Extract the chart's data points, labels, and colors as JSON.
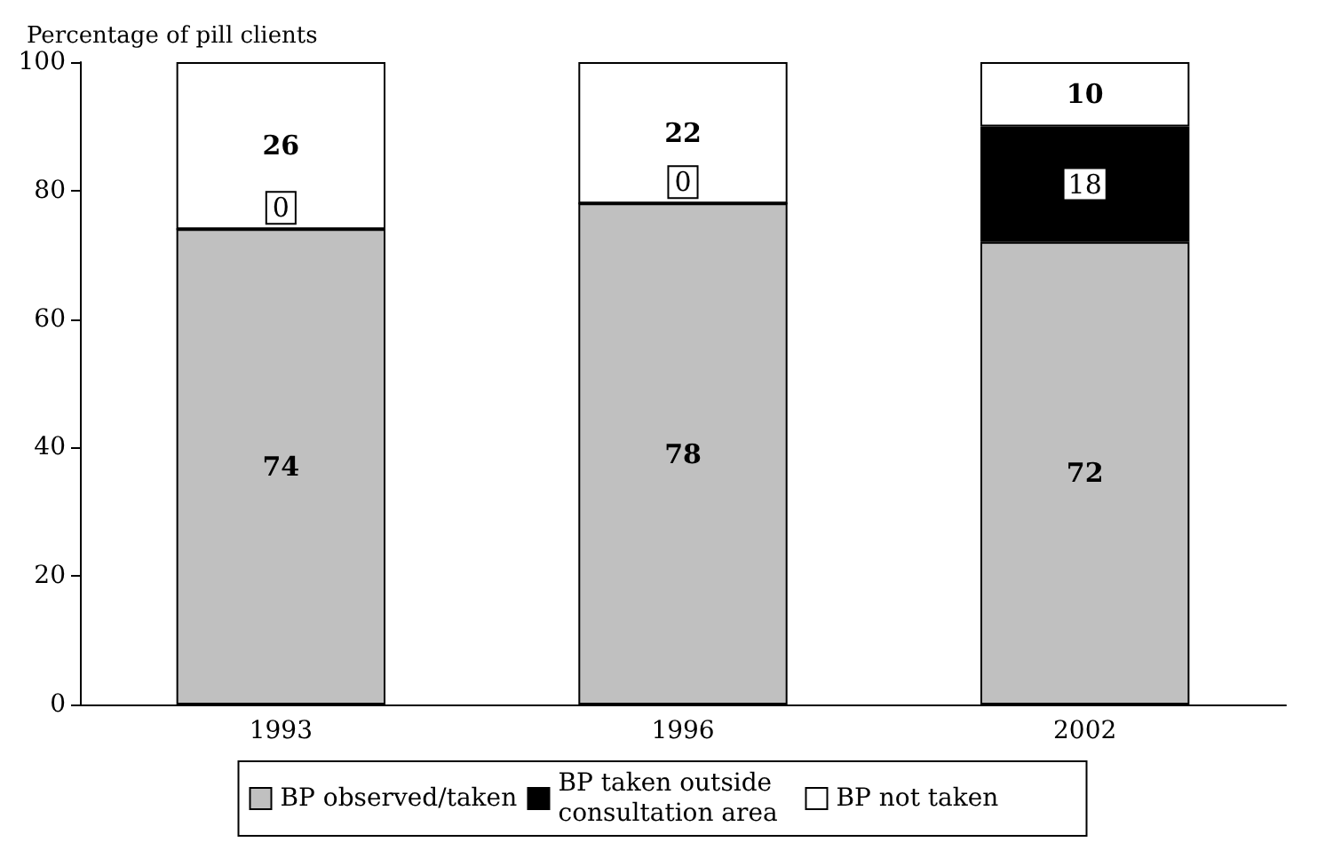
{
  "chart_data": {
    "type": "bar",
    "ylabel": "Percentage of pill clients",
    "categories": [
      "1993",
      "1996",
      "2002"
    ],
    "stacked": true,
    "data_labels": true,
    "legend": "bottom",
    "grid": false,
    "ylim": [
      0,
      100
    ],
    "yticks": [
      0,
      20,
      40,
      60,
      80,
      100
    ],
    "series": [
      {
        "name": "BP observed/taken",
        "color": "#c0c0c0",
        "values": [
          74,
          78,
          72
        ]
      },
      {
        "name": "BP taken outside consultation area",
        "color": "#000000",
        "values": [
          0,
          0,
          18
        ]
      },
      {
        "name": "BP not taken",
        "color": "#ffffff",
        "values": [
          26,
          22,
          10
        ]
      }
    ]
  }
}
